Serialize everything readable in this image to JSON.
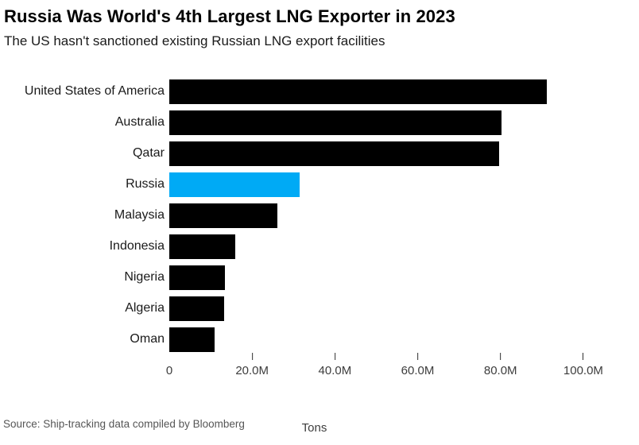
{
  "chart_data": {
    "type": "bar",
    "orientation": "horizontal",
    "title": "Russia Was World's 4th Largest LNG Exporter in 2023",
    "subtitle": "The US hasn't sanctioned existing Russian LNG export facilities",
    "xlabel": "Tons",
    "unit": "millions of tons",
    "categories": [
      "United States of America",
      "Australia",
      "Qatar",
      "Russia",
      "Malaysia",
      "Indonesia",
      "Nigeria",
      "Algeria",
      "Oman"
    ],
    "values": [
      91.2,
      80.2,
      79.6,
      31.4,
      26.2,
      16.0,
      13.4,
      13.3,
      11.0
    ],
    "xlim": [
      0,
      110
    ],
    "x_ticks": [
      {
        "value": 0,
        "label": "0"
      },
      {
        "value": 20,
        "label": "20.0M"
      },
      {
        "value": 40,
        "label": "40.0M"
      },
      {
        "value": 60,
        "label": "60.0M"
      },
      {
        "value": 80,
        "label": "80.0M"
      },
      {
        "value": 100,
        "label": "100.0M"
      }
    ],
    "grid": false,
    "legend": false,
    "bar_color": "#000000",
    "highlight_category": "Russia",
    "highlight_color": "#00aaf5",
    "source": "Source: Ship-tracking data compiled by Bloomberg"
  }
}
